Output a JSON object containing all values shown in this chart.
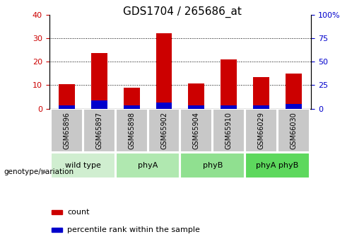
{
  "title": "GDS1704 / 265686_at",
  "samples": [
    "GSM65896",
    "GSM65897",
    "GSM65898",
    "GSM65902",
    "GSM65904",
    "GSM65910",
    "GSM66029",
    "GSM66030"
  ],
  "counts": [
    10.5,
    23.5,
    9.0,
    32.0,
    10.8,
    21.0,
    13.5,
    15.0
  ],
  "percentile_ranks": [
    1.5,
    3.5,
    1.5,
    2.5,
    1.5,
    1.5,
    1.5,
    2.0
  ],
  "groups": [
    {
      "label": "wild type",
      "start": 0,
      "end": 1,
      "color": "#d0eed0"
    },
    {
      "label": "phyA",
      "start": 2,
      "end": 3,
      "color": "#b0e8b0"
    },
    {
      "label": "phyB",
      "start": 4,
      "end": 5,
      "color": "#90e090"
    },
    {
      "label": "phyA phyB",
      "start": 6,
      "end": 7,
      "color": "#5dd85d"
    }
  ],
  "sample_cell_color": "#c8c8c8",
  "bar_color_red": "#cc0000",
  "bar_color_blue": "#0000cc",
  "ylim_left": [
    0,
    40
  ],
  "ylim_right": [
    0,
    100
  ],
  "yticks_left": [
    0,
    10,
    20,
    30,
    40
  ],
  "yticks_right": [
    0,
    25,
    50,
    75,
    100
  ],
  "ytick_labels_right": [
    "0",
    "25",
    "50",
    "75",
    "100%"
  ],
  "title_fontsize": 11,
  "tick_fontsize": 8,
  "bar_width": 0.5,
  "genotype_label": "genotype/variation",
  "legend_count": "count",
  "legend_pct": "percentile rank within the sample"
}
